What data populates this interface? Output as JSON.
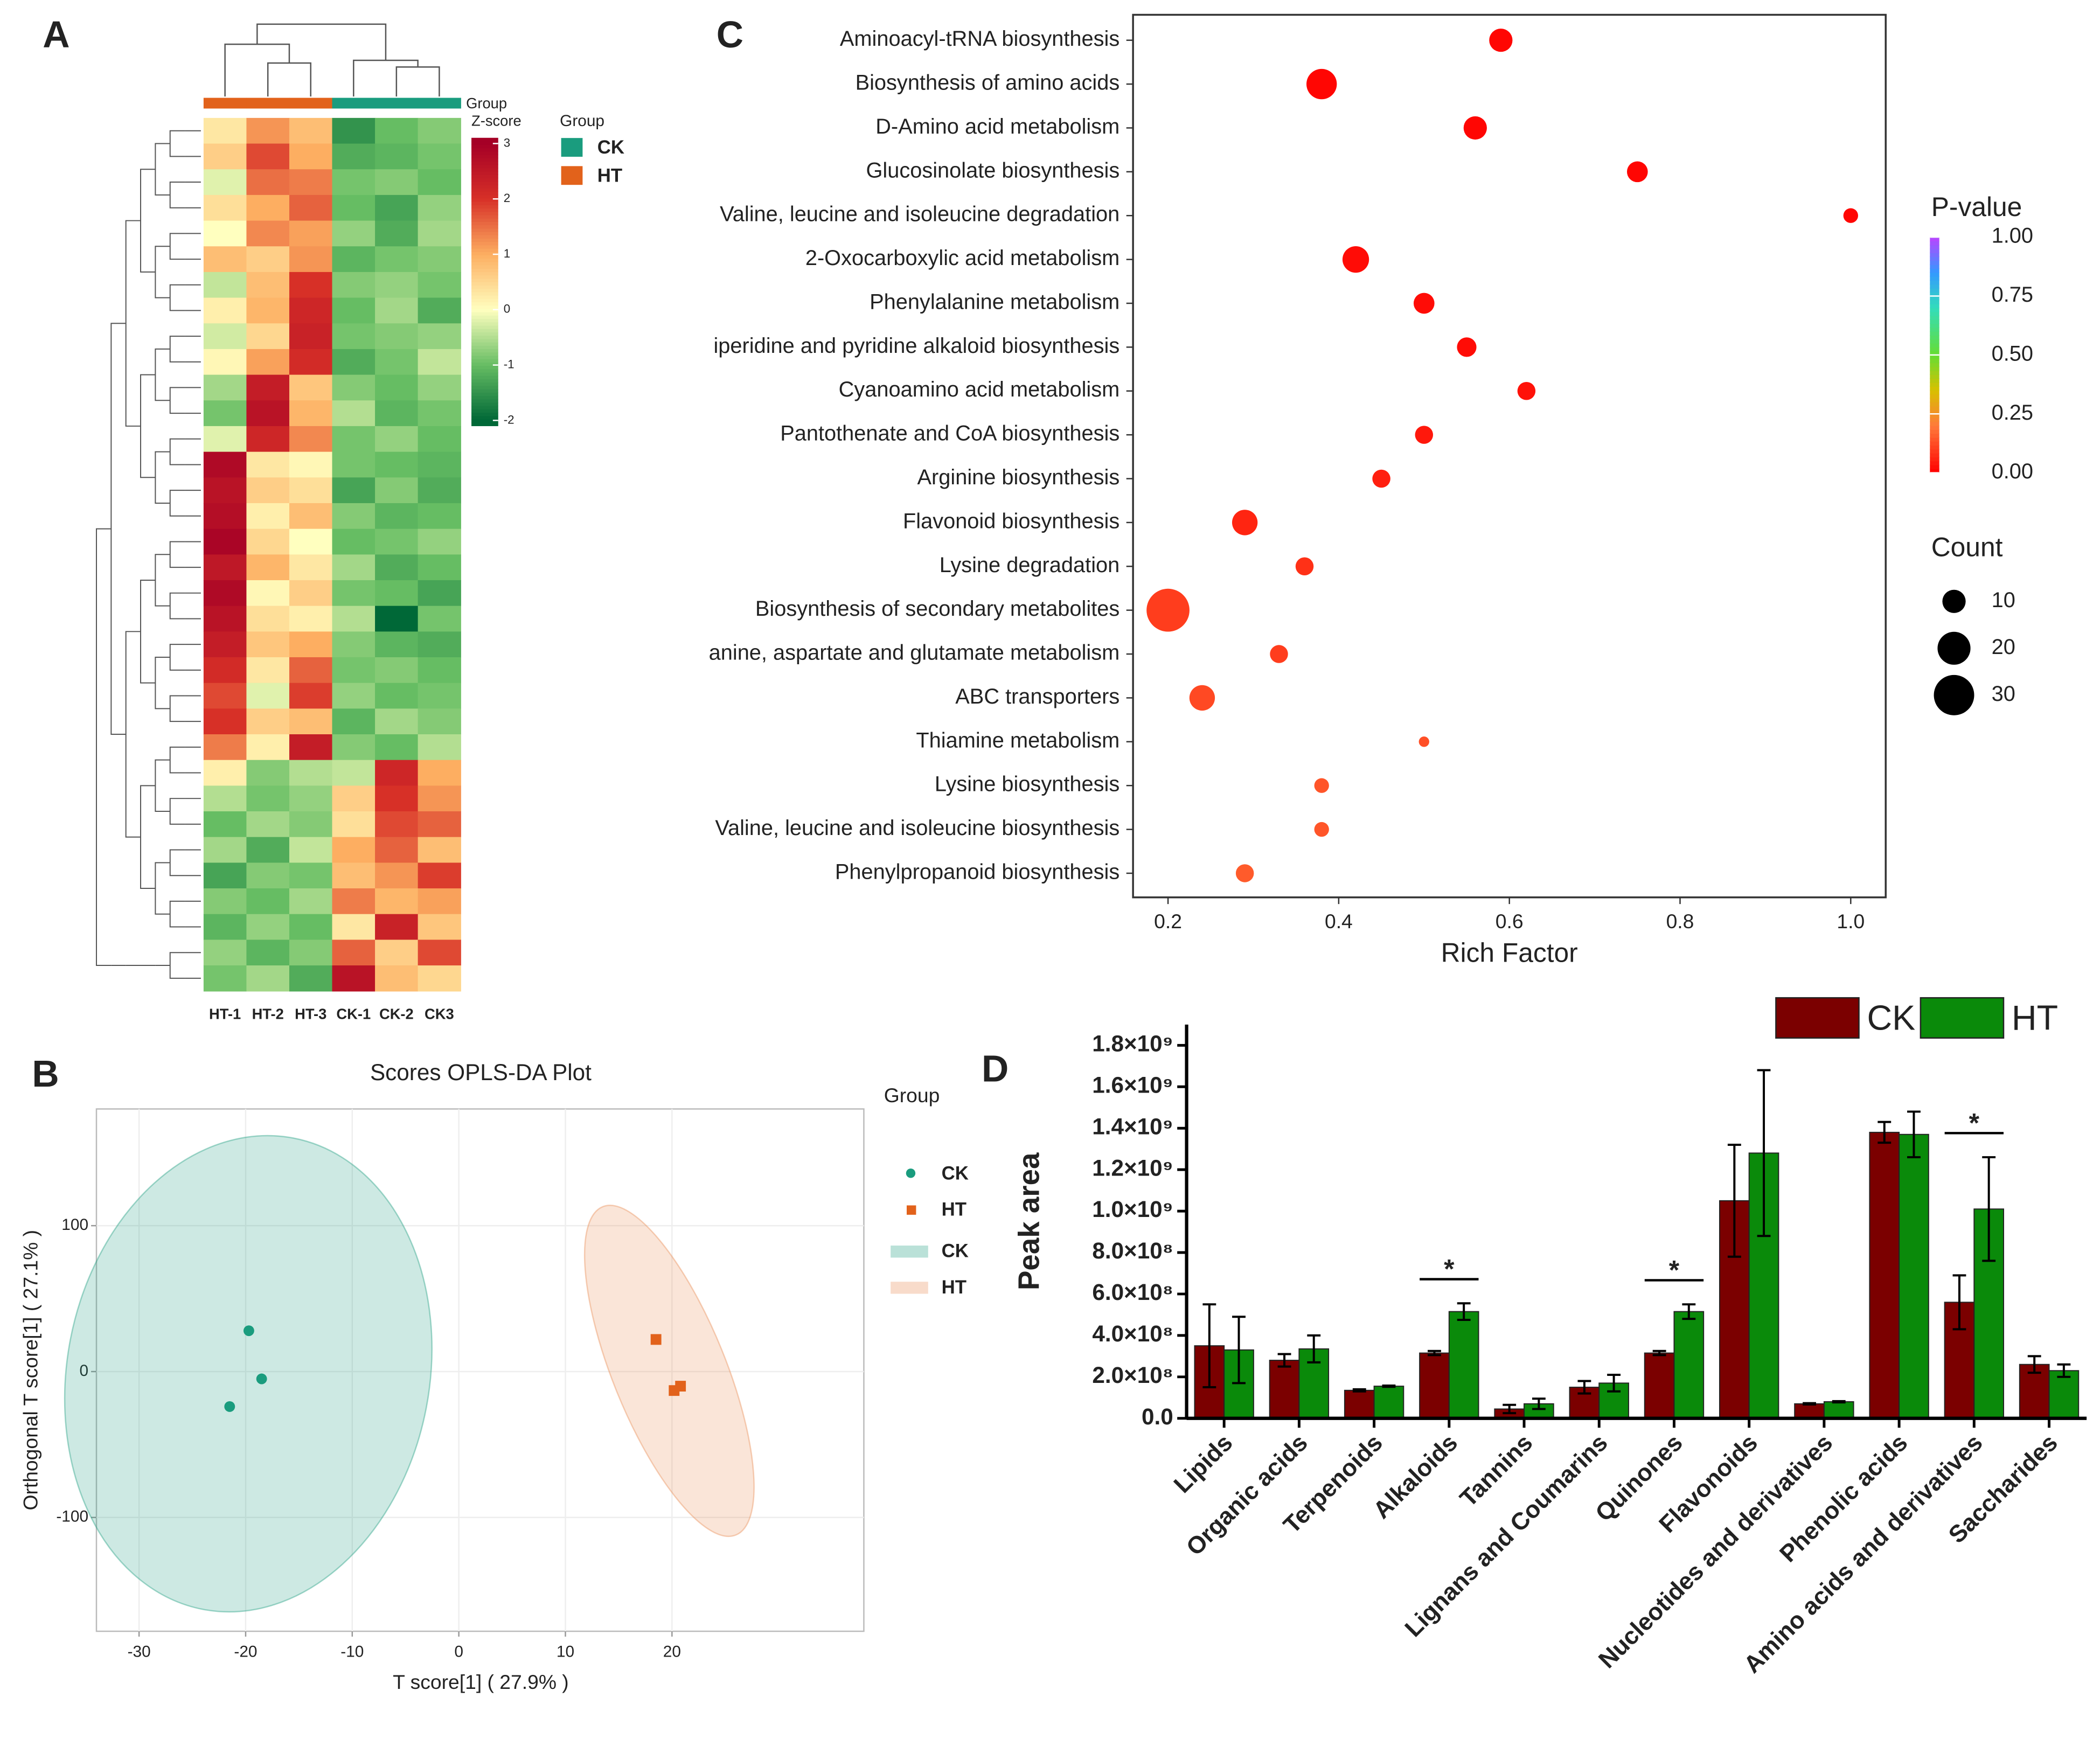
{
  "chart_data": [
    {
      "type": "heatmap",
      "panel": "A",
      "columns": [
        "HT-1",
        "HT-2",
        "HT-3",
        "CK-1",
        "CK-2",
        "CK3"
      ],
      "column_groups": [
        "HT",
        "HT",
        "HT",
        "CK",
        "CK",
        "CK"
      ],
      "group_bar_label": "Group",
      "legend_title": "Group",
      "colorbar_title": "Z-score",
      "groups": [
        {
          "name": "CK",
          "color": "#1a9c7e"
        },
        {
          "name": "HT",
          "color": "#e2621b"
        }
      ],
      "zlim": [
        -2.1,
        3.1
      ],
      "colorbar_ticks": [
        3,
        2,
        1,
        0,
        -1,
        -2
      ],
      "colorscale": [
        [
          -2,
          "#006837"
        ],
        [
          -1,
          "#66bd63"
        ],
        [
          0,
          "#ffffbf"
        ],
        [
          1,
          "#fdae61"
        ],
        [
          2,
          "#d73027"
        ],
        [
          3,
          "#a50026"
        ]
      ],
      "values": [
        [
          0.3,
          1.2,
          0.8,
          -1.5,
          -1.0,
          -0.8
        ],
        [
          0.6,
          1.8,
          1.0,
          -1.2,
          -1.1,
          -0.9
        ],
        [
          -0.2,
          1.5,
          1.4,
          -0.9,
          -0.8,
          -1.0
        ],
        [
          0.4,
          1.0,
          1.6,
          -1.0,
          -1.3,
          -0.7
        ],
        [
          0.0,
          1.3,
          1.1,
          -0.7,
          -1.2,
          -0.6
        ],
        [
          0.8,
          0.6,
          1.2,
          -1.1,
          -0.9,
          -0.8
        ],
        [
          -0.4,
          0.8,
          2.0,
          -0.8,
          -0.7,
          -0.9
        ],
        [
          0.2,
          0.9,
          2.2,
          -1.0,
          -0.6,
          -1.2
        ],
        [
          -0.3,
          0.5,
          2.3,
          -0.9,
          -0.8,
          -0.7
        ],
        [
          0.1,
          1.1,
          2.1,
          -1.2,
          -0.9,
          -0.4
        ],
        [
          -0.6,
          2.4,
          0.7,
          -0.8,
          -1.0,
          -0.7
        ],
        [
          -0.9,
          2.6,
          0.9,
          -0.5,
          -1.1,
          -0.9
        ],
        [
          -0.2,
          2.2,
          1.3,
          -0.9,
          -0.7,
          -1.0
        ],
        [
          2.8,
          0.3,
          0.1,
          -0.9,
          -1.0,
          -1.1
        ],
        [
          2.6,
          0.6,
          0.4,
          -1.3,
          -0.8,
          -1.2
        ],
        [
          2.7,
          0.2,
          0.8,
          -0.8,
          -1.1,
          -1.0
        ],
        [
          2.9,
          0.5,
          0.0,
          -1.0,
          -0.9,
          -0.7
        ],
        [
          2.5,
          0.9,
          0.3,
          -0.6,
          -1.2,
          -1.0
        ],
        [
          2.8,
          0.1,
          0.6,
          -0.9,
          -1.0,
          -1.3
        ],
        [
          2.6,
          0.4,
          0.2,
          -0.5,
          -2.0,
          -0.9
        ],
        [
          2.4,
          0.7,
          1.0,
          -0.8,
          -1.1,
          -1.2
        ],
        [
          2.1,
          0.3,
          1.6,
          -0.9,
          -0.8,
          -1.0
        ],
        [
          1.8,
          -0.2,
          1.9,
          -0.7,
          -1.0,
          -0.9
        ],
        [
          2.0,
          0.6,
          0.8,
          -1.1,
          -0.6,
          -0.8
        ],
        [
          1.4,
          0.2,
          2.4,
          -0.8,
          -1.0,
          -0.5
        ],
        [
          0.2,
          -0.8,
          -0.5,
          -0.4,
          2.2,
          1.0
        ],
        [
          -0.5,
          -0.9,
          -0.7,
          0.6,
          2.0,
          1.2
        ],
        [
          -1.0,
          -0.6,
          -0.8,
          0.4,
          1.8,
          1.6
        ],
        [
          -0.6,
          -1.2,
          -0.4,
          1.0,
          1.6,
          0.8
        ],
        [
          -1.3,
          -0.8,
          -0.9,
          0.8,
          1.2,
          1.9
        ],
        [
          -0.8,
          -1.0,
          -0.6,
          1.4,
          0.9,
          1.1
        ],
        [
          -1.1,
          -0.7,
          -1.0,
          0.3,
          2.3,
          0.7
        ],
        [
          -0.7,
          -1.1,
          -0.8,
          1.6,
          0.6,
          1.8
        ],
        [
          -0.9,
          -0.6,
          -1.2,
          2.6,
          0.8,
          0.5
        ]
      ]
    },
    {
      "type": "scatter",
      "panel": "B",
      "title": "Scores OPLS-DA Plot",
      "x_label": "T score[1] ( 27.9% )",
      "y_label": "Orthogonal T score[1] ( 27.1% )",
      "xlim": [
        -34,
        38
      ],
      "ylim": [
        -178,
        180
      ],
      "xticks": [
        -30,
        -20,
        -10,
        0,
        10,
        20
      ],
      "yticks": [
        -100,
        0,
        100
      ],
      "grid": true,
      "legend_title": "Group",
      "series": [
        {
          "name": "CK",
          "color": "#1a9c7e",
          "marker": "circle",
          "x": [
            -19.7,
            -18.5,
            -21.5
          ],
          "y": [
            28,
            -5,
            -24
          ]
        },
        {
          "name": "HT",
          "color": "#e2621b",
          "marker": "square",
          "x": [
            18.5,
            20.2,
            20.8
          ],
          "y": [
            22,
            -13,
            -10
          ]
        }
      ],
      "ellipses": [
        {
          "name": "CK",
          "color": "#1a9c7e",
          "tips": [
            [
              -15.5,
              160
            ],
            [
              -24,
              -163
            ]
          ],
          "half_width": 17
        },
        {
          "name": "HT",
          "color": "#e8894f",
          "tips": [
            [
              13.5,
              113
            ],
            [
              26,
              -112
            ]
          ],
          "half_width": 5.3
        }
      ]
    },
    {
      "type": "dot",
      "panel": "C",
      "x_label": "Rich Factor",
      "categories": [
        "Aminoacyl-tRNA biosynthesis",
        "Biosynthesis of amino acids",
        "D-Amino acid metabolism",
        "Glucosinolate biosynthesis",
        "Valine, leucine and isoleucine degradation",
        "2-Oxocarboxylic acid metabolism",
        "Phenylalanine metabolism",
        "iperidine and pyridine alkaloid biosynthesis",
        "Cyanoamino acid metabolism",
        "Pantothenate and CoA biosynthesis",
        "Arginine biosynthesis",
        "Flavonoid biosynthesis",
        "Lysine degradation",
        "Biosynthesis of secondary metabolites",
        "anine, aspartate and glutamate metabolism",
        "ABC transporters",
        "Thiamine metabolism",
        "Lysine biosynthesis",
        "Valine, leucine and isoleucine biosynthesis",
        "Phenylpropanoid biosynthesis"
      ],
      "values": [
        0.59,
        0.38,
        0.56,
        0.75,
        1.0,
        0.42,
        0.5,
        0.55,
        0.62,
        0.5,
        0.45,
        0.29,
        0.36,
        0.2,
        0.33,
        0.24,
        0.5,
        0.38,
        0.38,
        0.29
      ],
      "counts": [
        10,
        17,
        10,
        8,
        4,
        13,
        8,
        7,
        6,
        6,
        6,
        12,
        6,
        34,
        6,
        12,
        2,
        4,
        4,
        6
      ],
      "p_values": [
        0.01,
        0.01,
        0.01,
        0.01,
        0.01,
        0.02,
        0.02,
        0.02,
        0.03,
        0.04,
        0.05,
        0.06,
        0.08,
        0.1,
        0.1,
        0.12,
        0.13,
        0.14,
        0.14,
        0.15
      ],
      "xlim": [
        0.159,
        1.041
      ],
      "xticks": [
        0.2,
        0.4,
        0.6,
        0.8,
        {
          "value": 1,
          "label": "1.0"
        }
      ],
      "color_title": "P-value",
      "color_lim": [
        0,
        1
      ],
      "color_ticks": [
        {
          "value": 1,
          "label": "1.00"
        },
        {
          "value": 0.75,
          "label": "0.75"
        },
        {
          "value": 0.5,
          "label": "0.50"
        },
        {
          "value": 0.25,
          "label": "0.25"
        },
        {
          "value": 0,
          "label": "0.00"
        }
      ],
      "colorscale": [
        [
          0,
          "#ff0000"
        ],
        [
          0.2,
          "#ff7a3a"
        ],
        [
          0.35,
          "#d8c000"
        ],
        [
          0.5,
          "#66dd33"
        ],
        [
          0.7,
          "#33ddbb"
        ],
        [
          0.85,
          "#3399ff"
        ],
        [
          1,
          "#bb44ff"
        ]
      ],
      "size_title": "Count",
      "size_ticks": [
        10,
        20,
        30
      ]
    },
    {
      "type": "bar",
      "panel": "D",
      "y_label": "Peak area",
      "categories": [
        "Lipids",
        "Organic acids",
        "Terpenoids",
        "Alkaloids",
        "Tannins",
        "Lignans and Coumarins",
        "Quinones",
        "Flavonoids",
        "Nucleotides and derivatives",
        "Phenolic acids",
        "Amino acids and derivatives",
        "Saccharides"
      ],
      "series": [
        {
          "name": "CK",
          "color": "#7b0000",
          "values": [
            350000000,
            280000000,
            135000000,
            315000000,
            45000000,
            150000000,
            315000000,
            1050000000,
            70000000,
            1380000000,
            560000000,
            260000000
          ],
          "errors": [
            200000000,
            30000000,
            5000000,
            10000000,
            20000000,
            30000000,
            10000000,
            270000000,
            3000000,
            50000000,
            130000000,
            40000000
          ]
        },
        {
          "name": "HT",
          "color": "#0a8a0a",
          "values": [
            330000000,
            335000000,
            155000000,
            515000000,
            70000000,
            170000000,
            515000000,
            1280000000,
            80000000,
            1370000000,
            1010000000,
            230000000
          ],
          "errors": [
            160000000,
            65000000,
            3000000,
            40000000,
            25000000,
            40000000,
            35000000,
            400000000,
            3000000,
            110000000,
            250000000,
            30000000
          ]
        }
      ],
      "ylim": [
        0,
        1900000000
      ],
      "yticks": [
        {
          "value": 0,
          "label": "0.0"
        },
        {
          "value": 200000000,
          "label": "2.0×10⁸"
        },
        {
          "value": 400000000,
          "label": "4.0×10⁸"
        },
        {
          "value": 600000000,
          "label": "6.0×10⁸"
        },
        {
          "value": 800000000,
          "label": "8.0×10⁸"
        },
        {
          "value": 1000000000,
          "label": "1.0×10⁹"
        },
        {
          "value": 1200000000,
          "label": "1.2×10⁹"
        },
        {
          "value": 1400000000,
          "label": "1.4×10⁹"
        },
        {
          "value": 1600000000,
          "label": "1.6×10⁹"
        },
        {
          "value": 1800000000,
          "label": "1.8×10⁹"
        }
      ],
      "annotations": [
        {
          "category": 3,
          "text": "*"
        },
        {
          "category": 6,
          "text": "*"
        },
        {
          "category": 10,
          "text": "*"
        }
      ]
    }
  ]
}
